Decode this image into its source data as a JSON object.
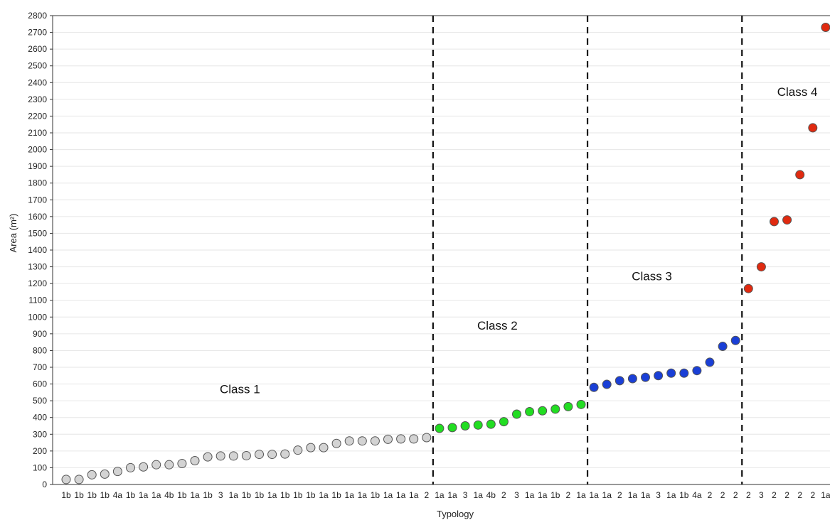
{
  "chart_data": {
    "type": "scatter",
    "title": "",
    "xlabel": "Typology",
    "ylabel": "Area (m²)",
    "ylim": [
      0,
      2800
    ],
    "yticks": [
      0,
      100,
      200,
      300,
      400,
      500,
      600,
      700,
      800,
      900,
      1000,
      1100,
      1200,
      1300,
      1400,
      1500,
      1600,
      1700,
      1800,
      1900,
      2000,
      2100,
      2200,
      2300,
      2400,
      2500,
      2600,
      2700,
      2800
    ],
    "grid": "horizontal",
    "categories": [
      "1b",
      "1b",
      "1b",
      "1b",
      "4a",
      "1b",
      "1a",
      "1a",
      "4b",
      "1b",
      "1a",
      "1b",
      "3",
      "1a",
      "1b",
      "1b",
      "1a",
      "1b",
      "1b",
      "1b",
      "1a",
      "1b",
      "1a",
      "1a",
      "1b",
      "1a",
      "1a",
      "1a",
      "2",
      "1a",
      "1a",
      "3",
      "1a",
      "4b",
      "2",
      "3",
      "1a",
      "1a",
      "1b",
      "2",
      "1a",
      "1a",
      "1a",
      "2",
      "1a",
      "1a",
      "3",
      "1a",
      "1b",
      "4a",
      "2",
      "2",
      "2",
      "2",
      "3",
      "2",
      "2",
      "2",
      "2",
      "1a"
    ],
    "series": [
      {
        "color": "#d3d3d3",
        "start": 0,
        "values": [
          30,
          30,
          58,
          62,
          78,
          100,
          105,
          118,
          118,
          125,
          142,
          165,
          170,
          170,
          172,
          180,
          180,
          182,
          205,
          220,
          220,
          245,
          260,
          260,
          260,
          270,
          272,
          272,
          280
        ]
      },
      {
        "color": "#22dd22",
        "start": 29,
        "values": [
          335,
          340,
          350,
          355,
          360,
          375,
          420,
          435,
          440,
          450,
          465,
          478
        ]
      },
      {
        "color": "#1a3fd6",
        "start": 41,
        "values": [
          580,
          598,
          620,
          632,
          640,
          650,
          665,
          665,
          680,
          730,
          825,
          860
        ]
      },
      {
        "color": "#e02a10",
        "start": 53,
        "values": [
          1170,
          1300,
          1570,
          1580,
          1850,
          2130,
          2730
        ]
      }
    ],
    "class_labels": [
      {
        "text": "Class 1",
        "x": 13.5,
        "y": 545
      },
      {
        "text": "Class 2",
        "x": 33.5,
        "y": 925
      },
      {
        "text": "Class 3",
        "x": 45.5,
        "y": 1220
      },
      {
        "text": "Class 4",
        "x": 56.8,
        "y": 2320
      }
    ],
    "class_boundaries": [
      28.5,
      40.5,
      52.5
    ]
  }
}
